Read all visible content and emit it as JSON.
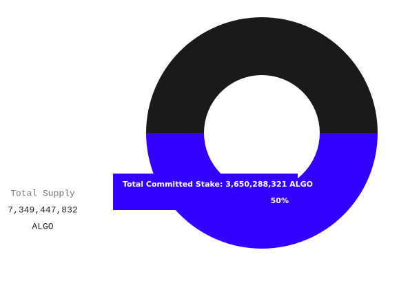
{
  "chart_data": {
    "type": "donut",
    "categories": [
      "Total Committed Stake: 3,650,288,321 ALGO",
      null
    ],
    "values": [
      50,
      50
    ],
    "value_labels": [
      "50%",
      null
    ],
    "colors": [
      "#3300ff",
      "#1a1a1a"
    ],
    "total_label": "Total Supply",
    "total": "7,349,447,832",
    "unit": "ALGO"
  }
}
